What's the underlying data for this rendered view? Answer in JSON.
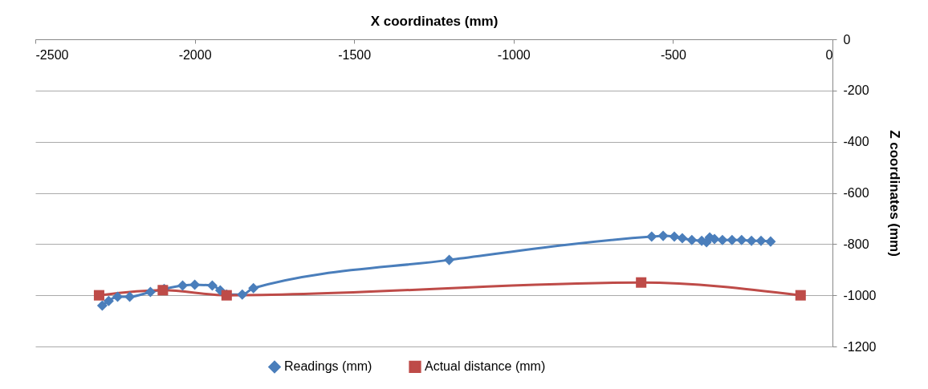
{
  "chart_data": {
    "type": "line",
    "xlabel": "X coordinates (mm)",
    "ylabel": "Z coordinates (mm)",
    "xlim": [
      -2500,
      0
    ],
    "xticks": [
      -2500,
      -2000,
      -1500,
      -1000,
      -500,
      0
    ],
    "ylim": [
      -1200,
      0
    ],
    "yticks": [
      -1200,
      -1000,
      -800,
      -600,
      -400,
      -200,
      0
    ],
    "grid": "y",
    "legend": "bottom",
    "series": [
      {
        "name": "Readings (mm)",
        "color": "#4a7ebb",
        "marker": "diamond",
        "x": [
          -2290,
          -2270,
          -2242,
          -2204,
          -2139,
          -2096,
          -2038,
          -2000,
          -1945,
          -1920,
          -1900,
          -1851,
          -1816,
          -1202,
          -567,
          -531,
          -496,
          -471,
          -441,
          -410,
          -395,
          -385,
          -370,
          -345,
          -315,
          -285,
          -254,
          -224,
          -194
        ],
        "values": [
          -1040,
          -1022,
          -1006,
          -1006,
          -987,
          -975,
          -962,
          -959,
          -962,
          -981,
          -997,
          -997,
          -972,
          -862,
          -771,
          -768,
          -771,
          -777,
          -784,
          -787,
          -793,
          -774,
          -780,
          -784,
          -784,
          -784,
          -787,
          -787,
          -790
        ]
      },
      {
        "name": "Actual distance (mm)",
        "color": "#be4b48",
        "marker": "square",
        "x": [
          -2300,
          -2100,
          -1900,
          -600,
          -100
        ],
        "values": [
          -1000,
          -980,
          -1000,
          -950,
          -1000
        ]
      }
    ]
  }
}
